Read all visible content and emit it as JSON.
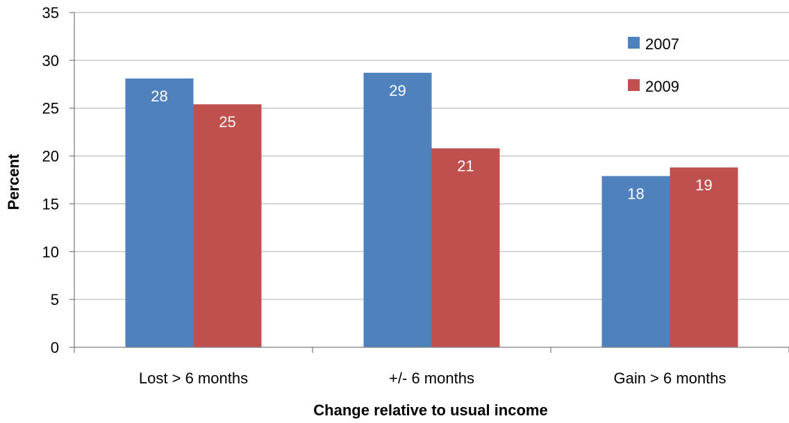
{
  "chart_data": {
    "type": "bar",
    "title": "",
    "xlabel": "Change relative to usual income",
    "ylabel": "Percent",
    "categories": [
      "Lost > 6 months",
      "+/- 6 months",
      "Gain > 6 months"
    ],
    "series": [
      {
        "name": "2007",
        "color": "#4F81BD",
        "values": [
          28.1,
          28.7,
          17.9
        ],
        "labels": [
          "28",
          "29",
          "18"
        ]
      },
      {
        "name": "2009",
        "color": "#C0504D",
        "values": [
          25.4,
          20.8,
          18.8
        ],
        "labels": [
          "25",
          "21",
          "19"
        ]
      }
    ],
    "ylim": [
      0,
      35
    ],
    "yticks": [
      0,
      5,
      10,
      15,
      20,
      25,
      30,
      35
    ],
    "grid": true,
    "legend_position": "top-right"
  }
}
